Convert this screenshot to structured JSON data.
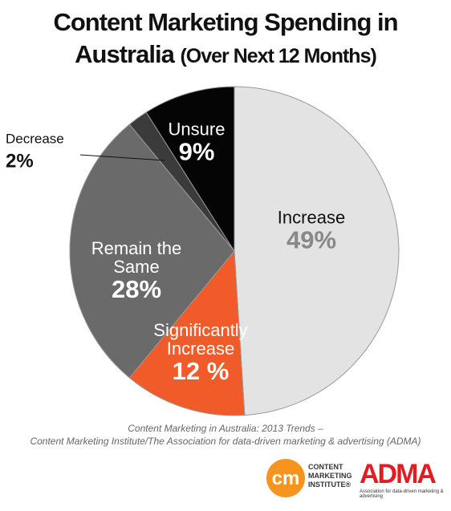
{
  "chart_data": {
    "type": "pie",
    "title": "Content Marketing Spending in Australia",
    "subtitle": "(Over Next 12 Months)",
    "categories": [
      "Increase",
      "Significantly Increase",
      "Remain the Same",
      "Decrease",
      "Unsure"
    ],
    "values": [
      49,
      12,
      28,
      2,
      9
    ],
    "value_labels": [
      "49%",
      "12 %",
      "28%",
      "2%",
      "9%"
    ],
    "colors": [
      "#e3e3e3",
      "#f15a29",
      "#6a6a6a",
      "#3b3b3b",
      "#050505"
    ],
    "source": [
      "Content Marketing in Australia: 2013 Trends –",
      "Content Marketing Institute/The Association for data-driven marketing & advertising (ADMA)"
    ]
  },
  "logos": {
    "cmi_mark": "cm",
    "cmi": "CONTENT MARKETING INSTITUTE®",
    "adma": "ADMA",
    "adma_tagline": "Association for data-driven marketing & advertising"
  }
}
